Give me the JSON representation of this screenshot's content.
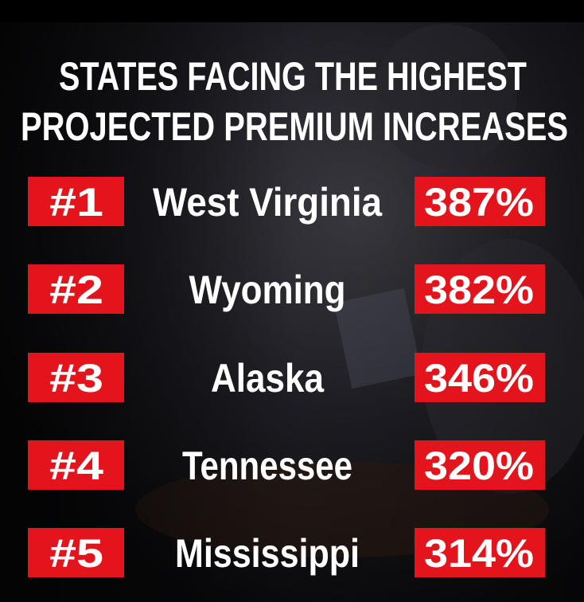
{
  "header": {
    "title_lines": [
      "STATES FACING THE HIGHEST",
      "PROJECTED PREMIUM INCREASES"
    ]
  },
  "table": {
    "rows": [
      [
        "#1",
        "West Virginia",
        "387%"
      ],
      [
        "#2",
        "Wyoming",
        "382%"
      ],
      [
        "#3",
        "Alaska",
        "346%"
      ],
      [
        "#4",
        "Tennessee",
        "320%"
      ],
      [
        "#5",
        "Mississippi",
        "314%"
      ]
    ]
  }
}
